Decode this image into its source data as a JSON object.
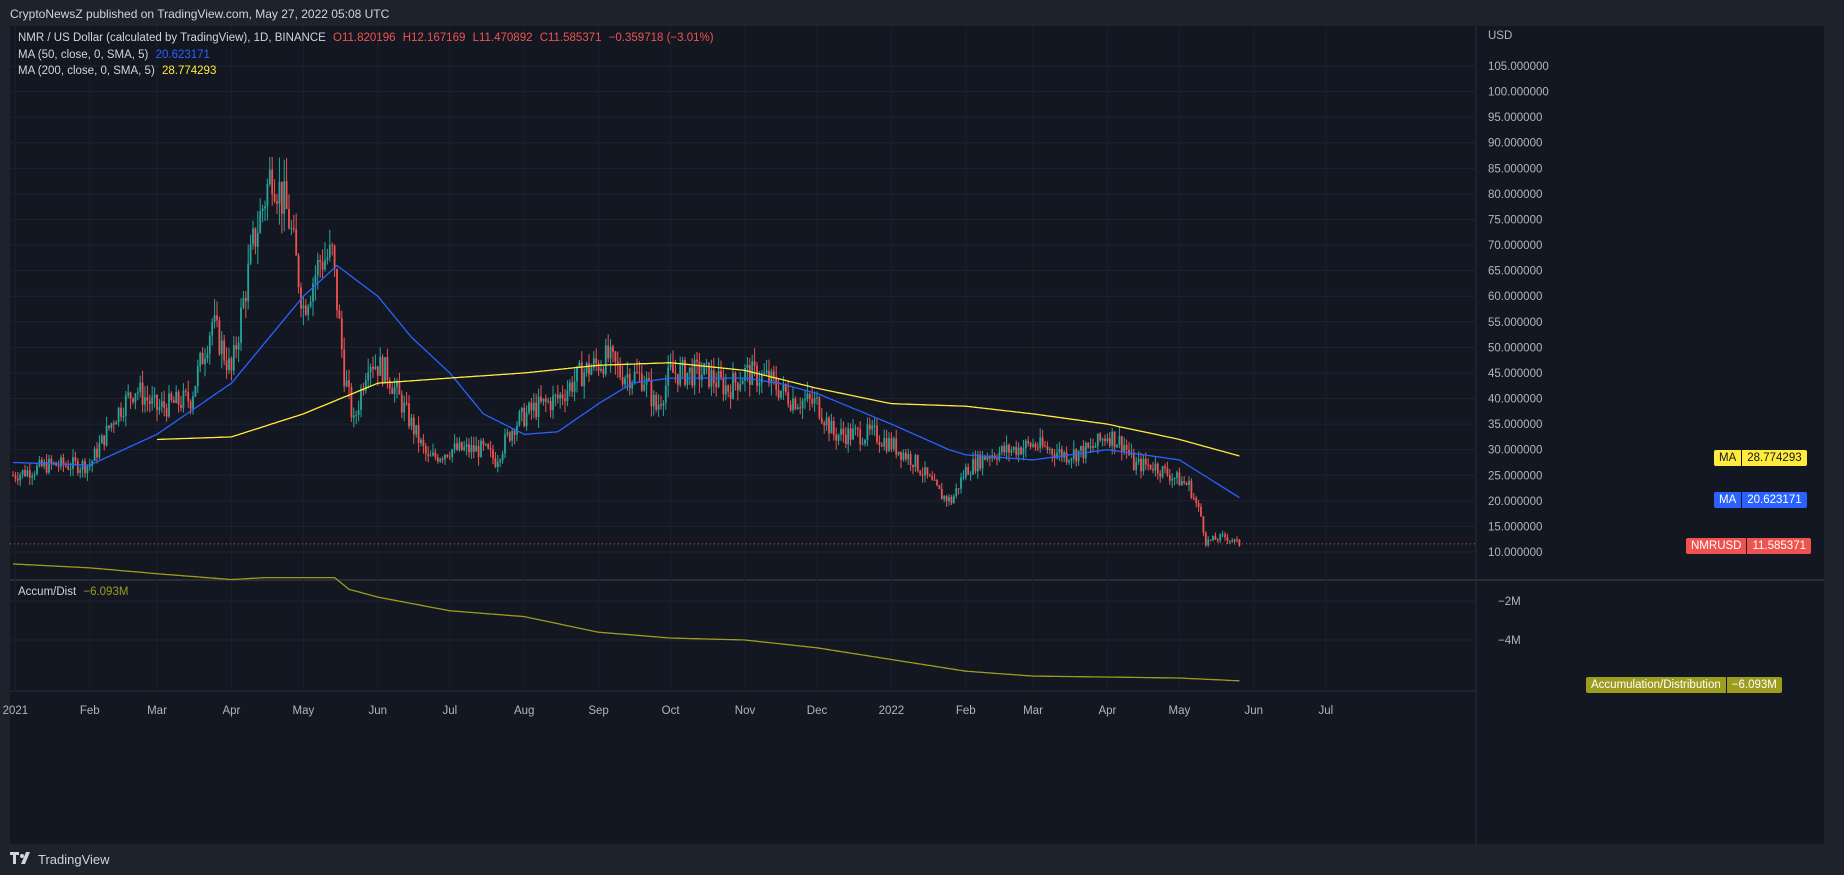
{
  "header": {
    "published": "CryptoNewsZ published on TradingView.com, May 27, 2022 05:08 UTC"
  },
  "legend": {
    "symbol": "NMR / US Dollar (calculated by TradingView), 1D, BINANCE",
    "o": "O11.820196",
    "h": "H12.167169",
    "l": "L11.470892",
    "c": "C11.585371",
    "change": "−0.359718 (−3.01%)",
    "ma50_label": "MA (50, close, 0, SMA, 5)",
    "ma50_value": "20.623171",
    "ma200_label": "MA (200, close, 0, SMA, 5)",
    "ma200_value": "28.774293"
  },
  "indicator": {
    "label": "Accum/Dist",
    "value": "−6.093M",
    "tag_label": "Accumulation/Distribution",
    "tag_value": "−6.093M"
  },
  "tags": {
    "ma200_name": "MA",
    "ma200_value": "28.774293",
    "ma50_name": "MA",
    "ma50_value": "20.623171",
    "price_name": "NMRUSD",
    "price_value": "11.585371"
  },
  "footer": {
    "brand": "TradingView"
  },
  "colors": {
    "up": "#26a69a",
    "down": "#ef5350",
    "ma50": "#2962ff",
    "ma200": "#ffeb3b",
    "ad": "#9c9c1e",
    "bg": "#131722"
  },
  "chart_data": {
    "type": "candlestick",
    "symbol": "NMRUSD",
    "currency": "USD",
    "price_axis": {
      "ticks": [
        10,
        15,
        20,
        25,
        30,
        35,
        40,
        45,
        50,
        55,
        60,
        65,
        70,
        75,
        80,
        85,
        90,
        95,
        100,
        105
      ],
      "labels": [
        "10.000000",
        "15.000000",
        "20.000000",
        "25.000000",
        "30.000000",
        "35.000000",
        "40.000000",
        "45.000000",
        "50.000000",
        "55.000000",
        "60.000000",
        "65.000000",
        "70.000000",
        "75.000000",
        "80.000000",
        "85.000000",
        "90.000000",
        "95.000000",
        "100.000000",
        "105.000000"
      ]
    },
    "indicator_axis": {
      "ticks": [
        -2,
        -4
      ],
      "labels": [
        "−2M",
        "−4M"
      ]
    },
    "time_axis": {
      "labels": [
        "2021",
        "Feb",
        "Mar",
        "Apr",
        "May",
        "Jun",
        "Jul",
        "Aug",
        "Sep",
        "Oct",
        "Nov",
        "Dec",
        "2022",
        "Feb",
        "Mar",
        "Apr",
        "May",
        "Jun",
        "Jul"
      ]
    },
    "start_date": "2020-12-31",
    "close_anchors": [
      [
        "2020-12-31",
        25
      ],
      [
        "2021-01-15",
        27
      ],
      [
        "2021-02-01",
        27
      ],
      [
        "2021-02-12",
        37
      ],
      [
        "2021-02-20",
        42
      ],
      [
        "2021-03-01",
        38
      ],
      [
        "2021-03-15",
        40
      ],
      [
        "2021-03-24",
        55
      ],
      [
        "2021-04-01",
        45
      ],
      [
        "2021-04-10",
        70
      ],
      [
        "2021-04-18",
        85
      ],
      [
        "2021-04-25",
        75
      ],
      [
        "2021-05-01",
        58
      ],
      [
        "2021-05-08",
        67
      ],
      [
        "2021-05-13",
        68
      ],
      [
        "2021-05-18",
        45
      ],
      [
        "2021-05-22",
        35
      ],
      [
        "2021-05-28",
        48
      ],
      [
        "2021-06-05",
        45
      ],
      [
        "2021-06-12",
        38
      ],
      [
        "2021-06-22",
        28
      ],
      [
        "2021-07-01",
        30
      ],
      [
        "2021-07-15",
        30
      ],
      [
        "2021-07-20",
        28
      ],
      [
        "2021-07-28",
        35
      ],
      [
        "2021-08-05",
        38
      ],
      [
        "2021-08-15",
        40
      ],
      [
        "2021-08-25",
        45
      ],
      [
        "2021-09-05",
        48
      ],
      [
        "2021-09-10",
        45
      ],
      [
        "2021-09-20",
        44
      ],
      [
        "2021-09-25",
        38
      ],
      [
        "2021-10-01",
        45
      ],
      [
        "2021-10-15",
        45
      ],
      [
        "2021-10-25",
        42
      ],
      [
        "2021-11-01",
        45
      ],
      [
        "2021-11-10",
        44
      ],
      [
        "2021-11-20",
        40
      ],
      [
        "2021-12-01",
        39
      ],
      [
        "2021-12-08",
        33
      ],
      [
        "2021-12-15",
        33
      ],
      [
        "2021-12-25",
        33
      ],
      [
        "2022-01-01",
        31
      ],
      [
        "2022-01-10",
        28
      ],
      [
        "2022-01-22",
        21
      ],
      [
        "2022-01-26",
        20
      ],
      [
        "2022-02-01",
        26
      ],
      [
        "2022-02-10",
        29
      ],
      [
        "2022-02-20",
        30
      ],
      [
        "2022-03-01",
        31
      ],
      [
        "2022-03-15",
        29
      ],
      [
        "2022-03-25",
        30
      ],
      [
        "2022-04-01",
        33
      ],
      [
        "2022-04-08",
        31
      ],
      [
        "2022-04-12",
        27
      ],
      [
        "2022-04-20",
        27
      ],
      [
        "2022-05-01",
        24
      ],
      [
        "2022-05-05",
        23
      ],
      [
        "2022-05-10",
        17
      ],
      [
        "2022-05-12",
        12
      ],
      [
        "2022-05-20",
        13
      ],
      [
        "2022-05-26",
        11.585371
      ]
    ],
    "ma50_anchors": [
      [
        "2020-12-31",
        27.5
      ],
      [
        "2021-02-01",
        27
      ],
      [
        "2021-03-01",
        33
      ],
      [
        "2021-04-01",
        43
      ],
      [
        "2021-05-01",
        60
      ],
      [
        "2021-05-15",
        66
      ],
      [
        "2021-06-01",
        60
      ],
      [
        "2021-06-15",
        52
      ],
      [
        "2021-07-01",
        45
      ],
      [
        "2021-07-15",
        37
      ],
      [
        "2021-08-01",
        33
      ],
      [
        "2021-08-15",
        33.5
      ],
      [
        "2021-09-01",
        39
      ],
      [
        "2021-09-15",
        43
      ],
      [
        "2021-10-01",
        44
      ],
      [
        "2021-11-01",
        44
      ],
      [
        "2021-11-15",
        43
      ],
      [
        "2021-12-01",
        41
      ],
      [
        "2022-01-01",
        35
      ],
      [
        "2022-01-25",
        30
      ],
      [
        "2022-02-01",
        29
      ],
      [
        "2022-03-01",
        28
      ],
      [
        "2022-04-01",
        30
      ],
      [
        "2022-05-01",
        28
      ],
      [
        "2022-05-26",
        20.623171
      ]
    ],
    "ma200_anchors": [
      [
        "2021-03-01",
        32
      ],
      [
        "2021-04-01",
        32.5
      ],
      [
        "2021-05-01",
        37
      ],
      [
        "2021-06-01",
        43
      ],
      [
        "2021-07-01",
        44
      ],
      [
        "2021-08-01",
        45
      ],
      [
        "2021-09-01",
        46.5
      ],
      [
        "2021-10-01",
        47
      ],
      [
        "2021-11-01",
        45.5
      ],
      [
        "2021-12-01",
        42
      ],
      [
        "2022-01-01",
        39
      ],
      [
        "2022-02-01",
        38.5
      ],
      [
        "2022-03-01",
        37
      ],
      [
        "2022-04-01",
        35
      ],
      [
        "2022-05-01",
        32
      ],
      [
        "2022-05-26",
        28.774293
      ]
    ],
    "accumulation_distribution_millions": [
      [
        "2020-12-31",
        -0.1
      ],
      [
        "2021-02-01",
        -0.3
      ],
      [
        "2021-03-01",
        -0.6
      ],
      [
        "2021-04-01",
        -0.9
      ],
      [
        "2021-04-15",
        -0.8
      ],
      [
        "2021-05-14",
        -0.8
      ],
      [
        "2021-05-20",
        -1.4
      ],
      [
        "2021-06-01",
        -1.8
      ],
      [
        "2021-07-01",
        -2.5
      ],
      [
        "2021-08-01",
        -2.8
      ],
      [
        "2021-09-01",
        -3.6
      ],
      [
        "2021-10-01",
        -3.9
      ],
      [
        "2021-11-01",
        -4.0
      ],
      [
        "2021-12-01",
        -4.4
      ],
      [
        "2022-01-01",
        -5.0
      ],
      [
        "2022-02-01",
        -5.6
      ],
      [
        "2022-03-01",
        -5.85
      ],
      [
        "2022-04-01",
        -5.9
      ],
      [
        "2022-05-01",
        -5.95
      ],
      [
        "2022-05-26",
        -6.093
      ]
    ],
    "last_price": 11.585371
  }
}
